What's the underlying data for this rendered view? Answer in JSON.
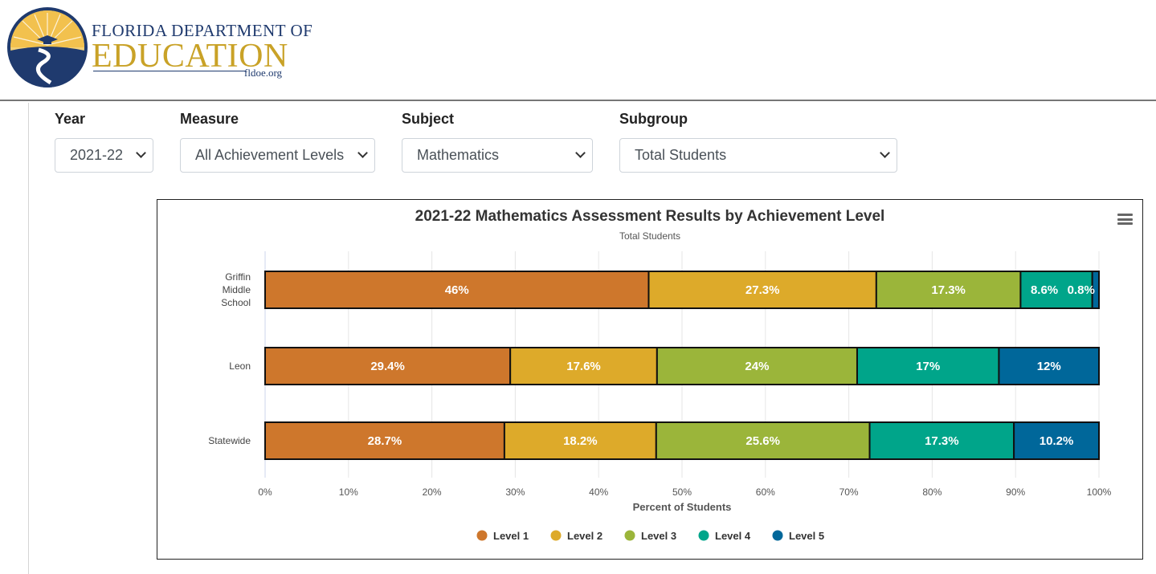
{
  "header": {
    "logo_line1": "FLORIDA DEPARTMENT OF",
    "logo_line2": "EDUCATION",
    "logo_url": "fldoe.org"
  },
  "filters": [
    {
      "label": "Year",
      "value": "2021-22"
    },
    {
      "label": "Measure",
      "value": "All Achievement Levels"
    },
    {
      "label": "Subject",
      "value": "Mathematics"
    },
    {
      "label": "Subgroup",
      "value": "Total Students"
    }
  ],
  "colors": {
    "level1": "#CE772C",
    "level2": "#DDAA2A",
    "level3": "#9BB53A",
    "level4": "#00A58A",
    "level5": "#00679A",
    "seal_blue": "#1f3a6e",
    "seal_gold": "#e8b63a"
  },
  "chart_data": {
    "type": "bar",
    "orientation": "horizontal",
    "stacked": true,
    "title": "2021-22 Mathematics Assessment Results by Achievement Level",
    "subtitle": "Total Students",
    "xlabel": "Percent of Students",
    "ylabel": "",
    "xlim": [
      0,
      100
    ],
    "x_ticks": [
      "0%",
      "10%",
      "20%",
      "30%",
      "40%",
      "50%",
      "60%",
      "70%",
      "80%",
      "90%",
      "100%"
    ],
    "categories": [
      "Griffin Middle School",
      "Leon",
      "Statewide"
    ],
    "series": [
      {
        "name": "Level 1",
        "values": [
          46,
          29.4,
          28.7
        ],
        "labels": [
          "46%",
          "29.4%",
          "28.7%"
        ]
      },
      {
        "name": "Level 2",
        "values": [
          27.3,
          17.6,
          18.2
        ],
        "labels": [
          "27.3%",
          "17.6%",
          "18.2%"
        ]
      },
      {
        "name": "Level 3",
        "values": [
          17.3,
          24,
          25.6
        ],
        "labels": [
          "17.3%",
          "24%",
          "25.6%"
        ]
      },
      {
        "name": "Level 4",
        "values": [
          8.6,
          17,
          17.3
        ],
        "labels": [
          "8.6%",
          "17%",
          "17.3%"
        ]
      },
      {
        "name": "Level 5",
        "values": [
          0.8,
          12,
          10.2
        ],
        "labels": [
          "0.8%",
          "12%",
          "10.2%"
        ]
      }
    ],
    "grid": true,
    "legend_position": "bottom"
  },
  "chart_menu_icon": "hamburger-menu-icon"
}
